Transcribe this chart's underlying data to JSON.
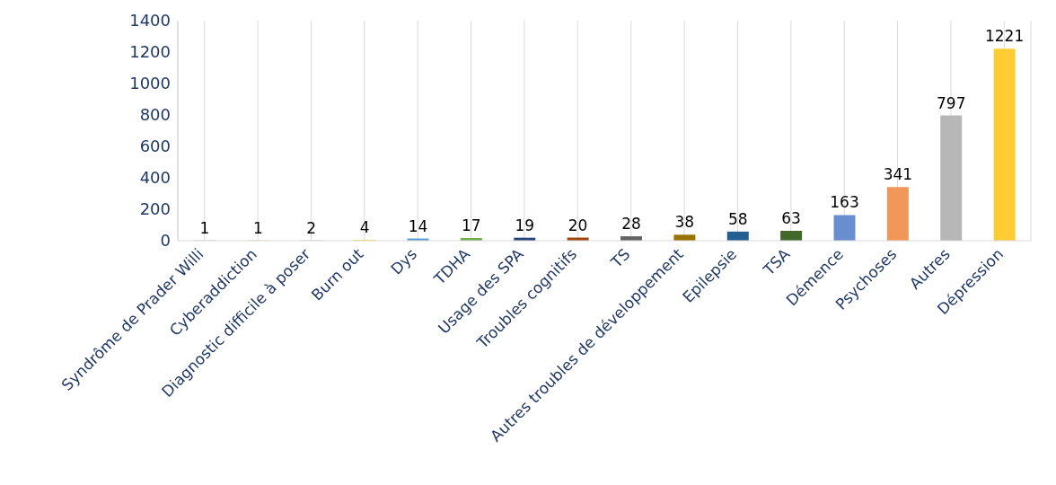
{
  "chart_data": {
    "type": "bar",
    "categories": [
      "Syndrôme de Prader Willi",
      "Cyberaddiction",
      "Diagnostic difficile à poser",
      "Burn out",
      "Dys",
      "TDHA",
      "Usage des SPA",
      "Troubles cognitifs",
      "TS",
      "Autres troubles de développement",
      "Epilepsie",
      "TSA",
      "Démence",
      "Psychoses",
      "Autres",
      "Dépression"
    ],
    "values": [
      1,
      1,
      2,
      4,
      14,
      17,
      19,
      20,
      28,
      38,
      58,
      63,
      163,
      341,
      797,
      1221
    ],
    "colors": [
      "#4472c4",
      "#ed7d31",
      "#a5a5a5",
      "#ffc000",
      "#5b9bd5",
      "#70ad47",
      "#264478",
      "#9e480e",
      "#636363",
      "#997300",
      "#255e91",
      "#43682b",
      "#698ed0",
      "#f1975a",
      "#b7b7b7",
      "#ffcd33"
    ],
    "ylim": [
      0,
      1400
    ],
    "yticks": [
      0,
      200,
      400,
      600,
      800,
      1000,
      1200,
      1400
    ],
    "grid": "x",
    "data_labels": true
  }
}
